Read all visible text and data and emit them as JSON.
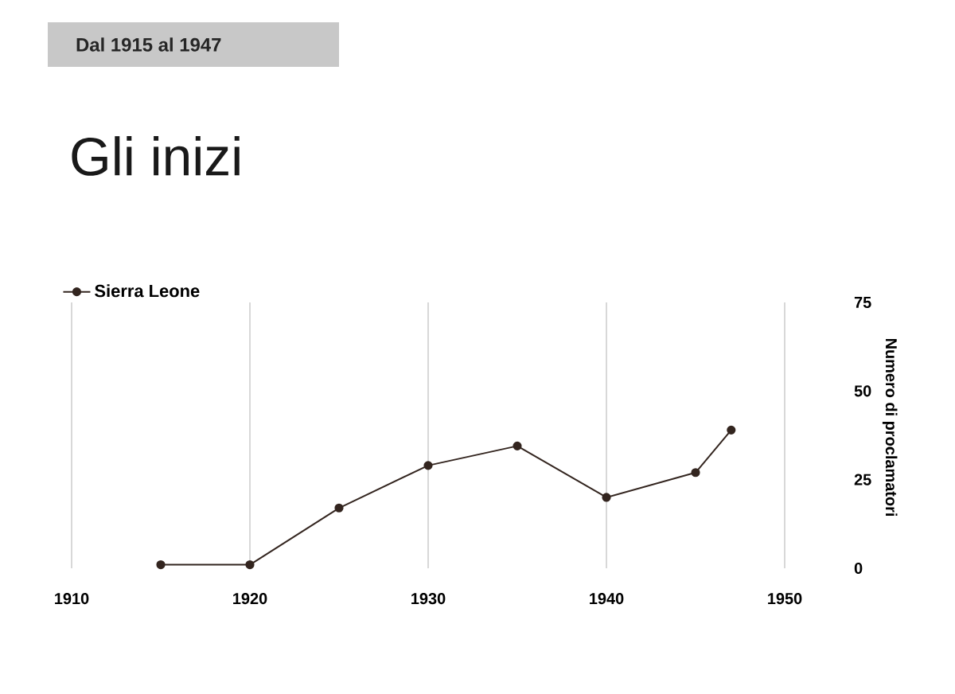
{
  "chart_data": {
    "type": "line",
    "title": "Gli inizi",
    "subtitle": "Dal 1915 al 1947",
    "ylabel": "Numero di proclamatori",
    "series": [
      {
        "name": "Sierra Leone",
        "color": "#33251f",
        "x": [
          1915,
          1920,
          1925,
          1930,
          1935,
          1940,
          1945,
          1947
        ],
        "values": [
          1,
          1,
          17,
          29,
          34.5,
          20,
          27,
          39
        ]
      }
    ],
    "xlim": [
      1910,
      1950
    ],
    "ylim": [
      0,
      75
    ],
    "xticks": [
      1910,
      1920,
      1930,
      1940,
      1950
    ],
    "yticks": [
      0,
      25,
      50,
      75
    ],
    "grid": "x",
    "legend": "top left",
    "marker": "circle",
    "line_style": "solid"
  }
}
